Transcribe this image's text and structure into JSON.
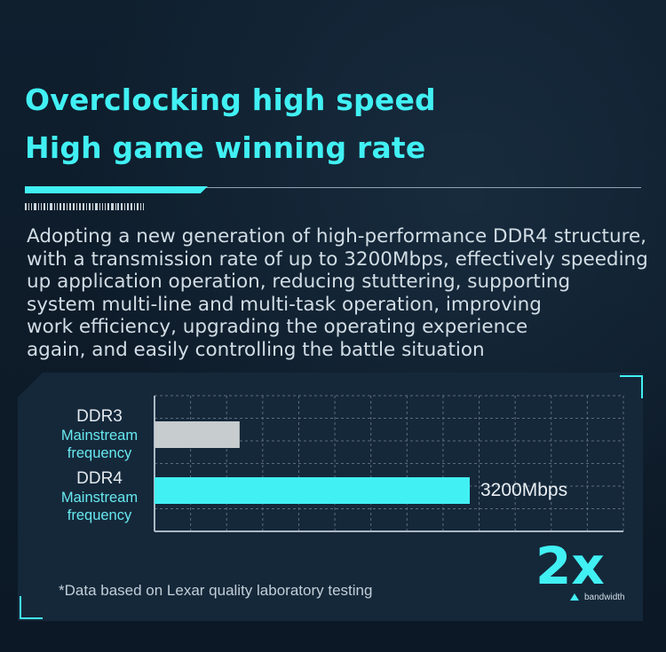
{
  "title": {
    "line1": "Overclocking high speed",
    "line2": "High game winning rate"
  },
  "description": "Adopting a new generation of high-performance DDR4 structure,\nwith a transmission rate of up to 3200Mbps, effectively speeding\nup application operation, reducing stuttering, supporting\nsystem multi-line and multi-task operation, improving\n work efficiency, upgrading the operating experience\nagain, and easily controlling the battle situation",
  "chart_data": {
    "type": "bar",
    "orientation": "horizontal",
    "categories": [
      "DDR3 Mainstream frequency",
      "DDR4 Mainstream frequency"
    ],
    "bars": [
      {
        "name": "DDR3",
        "sub": "Mainstream\nfrequency",
        "value": 0.27,
        "color": "#c7cccf",
        "value_label": ""
      },
      {
        "name": "DDR4",
        "sub": "Mainstream\nfrequency",
        "value": 1.0,
        "color": "#41f0f3",
        "value_label": "3200Mbps"
      }
    ],
    "xlim": [
      0,
      1
    ],
    "grid": true
  },
  "highlight": {
    "multiplier": "2x",
    "caption": "bandwidth"
  },
  "footnote": "*Data based on Lexar quality laboratory testing",
  "colors": {
    "accent": "#41f0f3",
    "background": "#0e1c2a",
    "panel": "#15283a"
  }
}
